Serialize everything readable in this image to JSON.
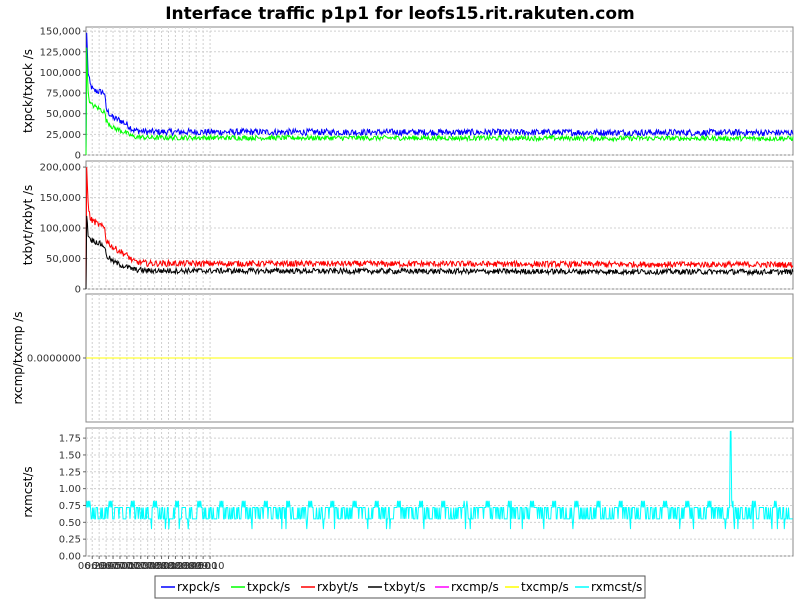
{
  "chart_data": {
    "type": "line",
    "title": "Interface traffic p1p1 for leofs15.rit.rakuten.com",
    "x_axis": {
      "tick_labels": [
        "06:20",
        "06:30",
        "06:40",
        "06:50",
        "07:00",
        "07:10",
        "07:20",
        "07:30",
        "07:40",
        "07:50",
        "08:00",
        "08:10",
        "08:20",
        "08:30",
        "08:40",
        "08:50",
        "09:00",
        "09:10"
      ],
      "range_minutes": [
        371,
        1391
      ]
    },
    "legend": {
      "position": "bottom-center",
      "entries": [
        {
          "name": "rxpck/s",
          "color": "#0000ff"
        },
        {
          "name": "txpck/s",
          "color": "#00ff00"
        },
        {
          "name": "rxbyt/s",
          "color": "#ff0000"
        },
        {
          "name": "txbyt/s",
          "color": "#000000"
        },
        {
          "name": "rxcmp/s",
          "color": "#ff00ff"
        },
        {
          "name": "txcmp/s",
          "color": "#ffff00"
        },
        {
          "name": "rxmcst/s",
          "color": "#00ffff"
        }
      ]
    },
    "panels": [
      {
        "ylabel": "txpck/txpck /s",
        "ylim": [
          0,
          155000
        ],
        "yticks": [
          0,
          25000,
          50000,
          75000,
          100000,
          125000,
          150000
        ],
        "ytick_labels": [
          "0",
          "25,000",
          "50,000",
          "75,000",
          "100,000",
          "125,000",
          "150,000"
        ],
        "series": [
          {
            "name": "rxpck/s",
            "color": "#0000ff",
            "noise": 4000,
            "points": [
              [
                371,
                0
              ],
              [
                372,
                148000
              ],
              [
                374,
                100000
              ],
              [
                377,
                85000
              ],
              [
                382,
                78000
              ],
              [
                395,
                76000
              ],
              [
                398,
                75000
              ],
              [
                400,
                55000
              ],
              [
                410,
                45000
              ],
              [
                420,
                42000
              ],
              [
                430,
                37000
              ],
              [
                440,
                30000
              ],
              [
                460,
                28000
              ],
              [
                1391,
                27000
              ]
            ]
          },
          {
            "name": "txpck/s",
            "color": "#00ff00",
            "noise": 3000,
            "points": [
              [
                371,
                0
              ],
              [
                372,
                130000
              ],
              [
                374,
                75000
              ],
              [
                377,
                62000
              ],
              [
                390,
                56000
              ],
              [
                398,
                52000
              ],
              [
                400,
                42000
              ],
              [
                410,
                33000
              ],
              [
                420,
                30000
              ],
              [
                430,
                26000
              ],
              [
                440,
                22000
              ],
              [
                460,
                21000
              ],
              [
                1391,
                20000
              ]
            ]
          }
        ]
      },
      {
        "ylabel": "txbyt/rxbyt /s",
        "ylim": [
          0,
          210000
        ],
        "yticks": [
          0,
          50000,
          100000,
          150000,
          200000
        ],
        "ytick_labels": [
          "0",
          "50,000",
          "100,000",
          "150,000",
          "200,000"
        ],
        "series": [
          {
            "name": "rxbyt/s",
            "color": "#ff0000",
            "noise": 5000,
            "points": [
              [
                371,
                0
              ],
              [
                372,
                200000
              ],
              [
                374,
                140000
              ],
              [
                377,
                115000
              ],
              [
                390,
                105000
              ],
              [
                398,
                100000
              ],
              [
                400,
                80000
              ],
              [
                410,
                68000
              ],
              [
                420,
                62000
              ],
              [
                430,
                55000
              ],
              [
                440,
                45000
              ],
              [
                460,
                42000
              ],
              [
                1391,
                40000
              ]
            ]
          },
          {
            "name": "txbyt/s",
            "color": "#000000",
            "noise": 4500,
            "points": [
              [
                371,
                0
              ],
              [
                372,
                120000
              ],
              [
                374,
                90000
              ],
              [
                377,
                82000
              ],
              [
                390,
                75000
              ],
              [
                398,
                70000
              ],
              [
                400,
                55000
              ],
              [
                410,
                45000
              ],
              [
                420,
                40000
              ],
              [
                430,
                36000
              ],
              [
                440,
                32000
              ],
              [
                460,
                30000
              ],
              [
                1391,
                28000
              ]
            ]
          }
        ]
      },
      {
        "ylabel": "rxcmp/txcmp /s",
        "ylim": [
          -1,
          1
        ],
        "yticks": [
          0
        ],
        "ytick_labels": [
          "0.0000000"
        ],
        "series": [
          {
            "name": "rxcmp/s",
            "color": "#ff00ff",
            "noise": 0,
            "points": [
              [
                371,
                0
              ],
              [
                1391,
                0
              ]
            ]
          },
          {
            "name": "txcmp/s",
            "color": "#ffff00",
            "noise": 0,
            "points": [
              [
                371,
                0
              ],
              [
                1391,
                0
              ]
            ]
          }
        ]
      },
      {
        "ylabel": "rxmcst/s",
        "ylim": [
          0,
          1.9
        ],
        "yticks": [
          0,
          0.25,
          0.5,
          0.75,
          1.0,
          1.25,
          1.5,
          1.75
        ],
        "ytick_labels": [
          "0.00",
          "0.25",
          "0.50",
          "0.75",
          "1.00",
          "1.25",
          "1.50",
          "1.75"
        ],
        "series": [
          {
            "name": "rxmcst/s",
            "color": "#00ffff",
            "noise": 0,
            "pattern": "multicast",
            "levels": [
              0.5,
              0.82
            ],
            "base": [
              0.55,
              0.72
            ],
            "spike": [
              1301,
              1.85
            ],
            "points": [
              [
                371,
                0.7
              ],
              [
                1391,
                0.7
              ]
            ]
          }
        ]
      }
    ]
  }
}
